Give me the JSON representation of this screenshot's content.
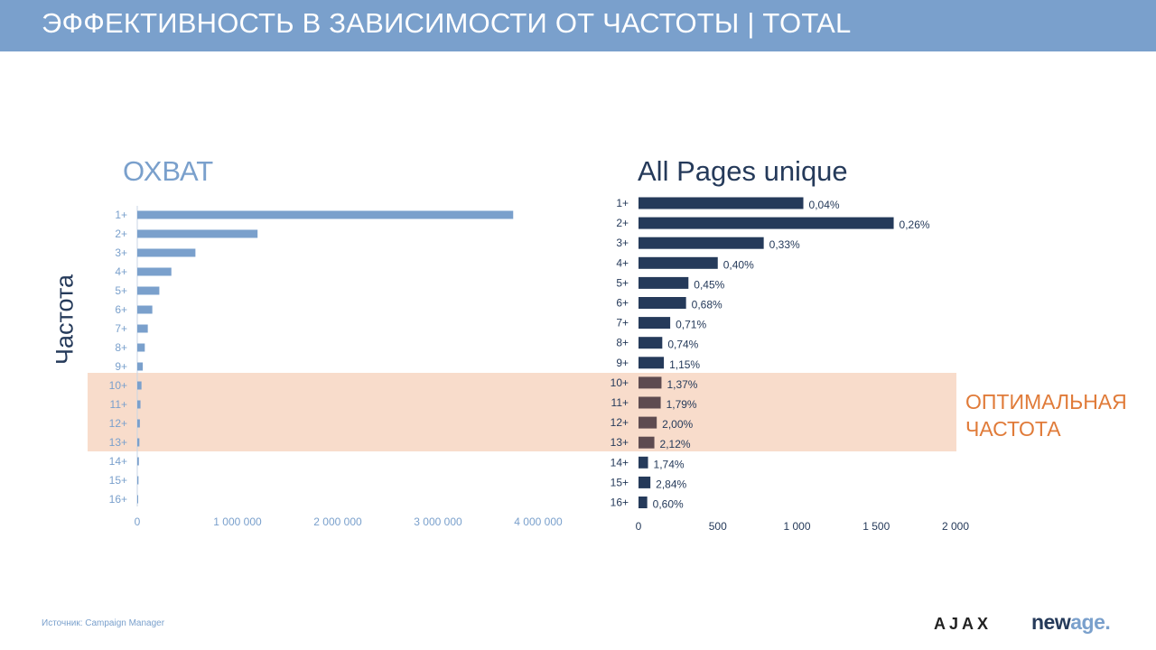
{
  "header": {
    "title": "ЭФФЕКТИВНОСТЬ В ЗАВИСИМОСТИ ОТ ЧАСТОТЫ | TOTAL"
  },
  "y_axis_label": "Частота",
  "optimal_label": {
    "line1": "ОПТИМАЛЬНАЯ",
    "line2": "ЧАСТОТА"
  },
  "source": "Источник: Campaign Manager",
  "logos": {
    "ajax": "AJAX",
    "newage_new": "new",
    "newage_age": "age",
    "newage_dot": "."
  },
  "colors": {
    "header": "#7aa0cc",
    "reach_bar": "#7aa0cc",
    "pages_bar": "#253a5a",
    "pages_bar_highlight": "#5e4b50",
    "highlight_band": "#f8dccb",
    "optimal_text": "#e07b39"
  },
  "chart_data": [
    {
      "type": "bar",
      "orientation": "horizontal",
      "title": "ОХВАТ",
      "categories": [
        "1+",
        "2+",
        "3+",
        "4+",
        "5+",
        "6+",
        "7+",
        "8+",
        "9+",
        "10+",
        "11+",
        "12+",
        "13+",
        "14+",
        "15+",
        "16+"
      ],
      "values": [
        3750000,
        1200000,
        580000,
        340000,
        220000,
        150000,
        105000,
        75000,
        55000,
        42000,
        32000,
        26000,
        21000,
        16000,
        12000,
        9000
      ],
      "xlim": [
        0,
        4000000
      ],
      "xticks": [
        0,
        1000000,
        2000000,
        3000000,
        4000000
      ],
      "xtick_labels": [
        "0",
        "1 000 000",
        "2 000 000",
        "3 000 000",
        "4 000 000"
      ],
      "grid": false
    },
    {
      "type": "bar",
      "orientation": "horizontal",
      "title": "All Pages unique",
      "categories": [
        "1+",
        "2+",
        "3+",
        "4+",
        "5+",
        "6+",
        "7+",
        "8+",
        "9+",
        "10+",
        "11+",
        "12+",
        "13+",
        "14+",
        "15+",
        "16+"
      ],
      "values": [
        1040,
        1610,
        790,
        500,
        315,
        300,
        200,
        150,
        160,
        145,
        140,
        115,
        100,
        60,
        75,
        55
      ],
      "data_labels": [
        "0,04%",
        "0,26%",
        "0,33%",
        "0,40%",
        "0,45%",
        "0,68%",
        "0,71%",
        "0,74%",
        "1,15%",
        "1,37%",
        "1,79%",
        "2,00%",
        "2,12%",
        "1,74%",
        "2,84%",
        "0,60%"
      ],
      "xlim": [
        0,
        2000
      ],
      "xticks": [
        0,
        500,
        1000,
        1500,
        2000
      ],
      "xtick_labels": [
        "0",
        "500",
        "1 000",
        "1 500",
        "2 000"
      ],
      "highlight_categories": [
        "10+",
        "11+",
        "12+",
        "13+"
      ],
      "grid": false
    }
  ]
}
